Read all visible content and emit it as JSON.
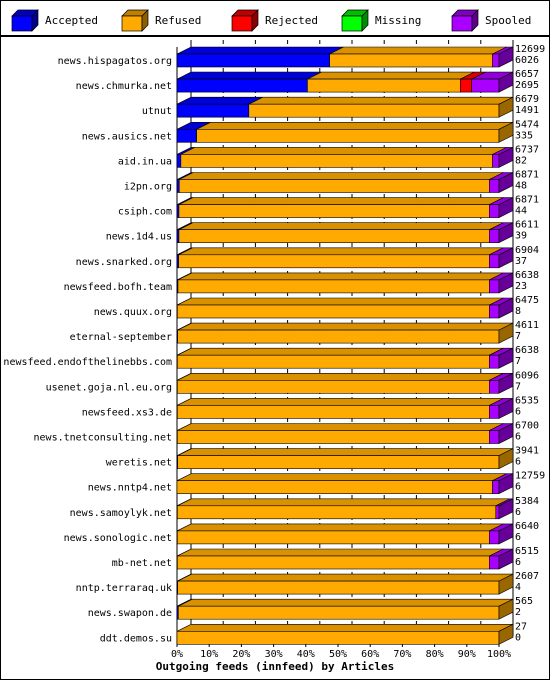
{
  "chart_data": {
    "type": "bar",
    "subtype": "horizontal-stacked-3d",
    "xlabel": "Outgoing feeds (innfeed) by Articles",
    "ylabel": "",
    "xlim": [
      0,
      100
    ],
    "xticks": [
      "0%",
      "10%",
      "20%",
      "30%",
      "40%",
      "50%",
      "60%",
      "70%",
      "80%",
      "90%",
      "100%"
    ],
    "grid": true,
    "legend_position": "top",
    "legend": [
      {
        "name": "Accepted",
        "color": "#0000ff"
      },
      {
        "name": "Refused",
        "color": "#ffaa00"
      },
      {
        "name": "Rejected",
        "color": "#ff0000"
      },
      {
        "name": "Missing",
        "color": "#00ff00"
      },
      {
        "name": "Spooled",
        "color": "#aa00ff"
      }
    ],
    "categories": [
      "news.hispagatos.org",
      "news.chmurka.net",
      "utnut",
      "news.ausics.net",
      "aid.in.ua",
      "i2pn.org",
      "csiph.com",
      "news.1d4.us",
      "news.snarked.org",
      "newsfeed.bofh.team",
      "news.quux.org",
      "eternal-september",
      "newsfeed.endofthelinebbs.com",
      "usenet.goja.nl.eu.org",
      "newsfeed.xs3.de",
      "news.tnetconsulting.net",
      "weretis.net",
      "news.nntp4.net",
      "news.samoylyk.net",
      "news.sonologic.net",
      "mb-net.net",
      "nntp.terraraq.uk",
      "news.swapon.de",
      "ddt.demos.su"
    ],
    "offered": [
      "12699",
      "6657",
      "6679",
      "5474",
      "6737",
      "6871",
      "6871",
      "6611",
      "6904",
      "6638",
      "6475",
      "4611",
      "6638",
      "6096",
      "6535",
      "6700",
      "3941",
      "12759",
      "5384",
      "6640",
      "6515",
      "2607",
      "565",
      "27"
    ],
    "accepted": [
      "6026",
      "2695",
      "1491",
      "335",
      "82",
      "48",
      "44",
      "39",
      "37",
      "23",
      "8",
      "7",
      "7",
      "7",
      "6",
      "6",
      "6",
      "6",
      "6",
      "6",
      "6",
      "4",
      "2",
      "0"
    ],
    "series": [
      {
        "name": "Accepted",
        "color": "#0000ff",
        "values": [
          47.4,
          40.5,
          22.3,
          6.1,
          1.2,
          0.7,
          0.6,
          0.6,
          0.5,
          0.3,
          0.1,
          0.2,
          0.1,
          0.1,
          0.1,
          0.1,
          0.2,
          0.0,
          0.1,
          0.1,
          0.1,
          0.2,
          0.4,
          0.0
        ]
      },
      {
        "name": "Refused",
        "color": "#ffaa00",
        "values": [
          50.6,
          47.5,
          77.7,
          93.9,
          96.8,
          96.3,
          96.4,
          96.4,
          96.5,
          96.7,
          96.9,
          99.8,
          96.9,
          96.9,
          96.9,
          96.9,
          99.8,
          98.0,
          98.9,
          96.9,
          96.9,
          99.8,
          99.6,
          100.0
        ]
      },
      {
        "name": "Rejected",
        "color": "#ff0000",
        "values": [
          0,
          3.5,
          0,
          0,
          0,
          0,
          0,
          0,
          0,
          0,
          0,
          0,
          0,
          0,
          0,
          0,
          0,
          0,
          0,
          0,
          0,
          0,
          0,
          0
        ]
      },
      {
        "name": "Missing",
        "color": "#00ff00",
        "values": [
          0,
          0,
          0,
          0,
          0,
          0,
          0,
          0,
          0,
          0,
          0,
          0,
          0,
          0,
          0,
          0,
          0,
          0,
          0,
          0,
          0,
          0,
          0,
          0
        ]
      },
      {
        "name": "Spooled",
        "color": "#aa00ff",
        "values": [
          2.0,
          8.5,
          0,
          0,
          2.0,
          3.0,
          3.0,
          3.0,
          3.0,
          3.0,
          3.0,
          0,
          3.0,
          3.0,
          3.0,
          3.0,
          0,
          2.0,
          1.0,
          3.0,
          3.0,
          0,
          0,
          0
        ]
      }
    ]
  }
}
